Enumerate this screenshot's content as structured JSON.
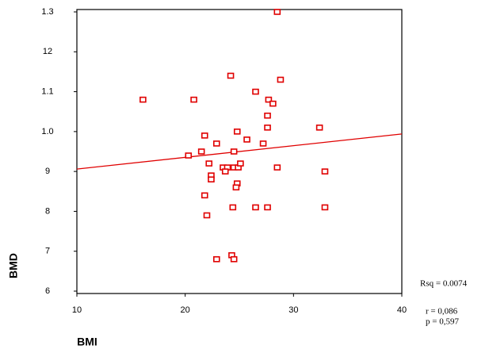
{
  "chart_data": {
    "type": "scatter",
    "x_label": "BMI",
    "y_label": "BMD",
    "color": "#e00000",
    "xlim": [
      10,
      40
    ],
    "xticks": [
      10,
      20,
      30,
      40
    ],
    "ylim": [
      0.6,
      1.3
    ],
    "yticks": [
      1.3,
      {
        "value": 1.2,
        "label": "12"
      },
      1.1,
      {
        "value": 1.0,
        "label": "1.0"
      },
      {
        "value": 0.9,
        "label": "9"
      },
      {
        "value": 0.8,
        "label": "8"
      },
      {
        "value": 0.7,
        "label": "7"
      },
      {
        "value": 0.6,
        "label": "6"
      }
    ],
    "grid": false,
    "x": [
      28.5,
      24.2,
      28.8,
      16.1,
      20.8,
      26.5,
      27.7,
      28.1,
      27.6,
      27.6,
      32.4,
      21.8,
      24.8,
      25.7,
      22.9,
      27.2,
      21.5,
      20.3,
      24.5,
      22.2,
      23.5,
      23.9,
      24.5,
      24.9,
      25.1,
      23.7,
      28.5,
      32.9,
      22.4,
      22.4,
      24.8,
      24.7,
      21.8,
      24.4,
      26.5,
      27.6,
      32.9,
      22.0,
      22.9,
      24.3,
      24.5
    ],
    "values": [
      1.3,
      1.14,
      1.13,
      1.08,
      1.08,
      1.1,
      1.08,
      1.07,
      1.04,
      1.01,
      1.01,
      0.99,
      1.0,
      0.98,
      0.97,
      0.97,
      0.95,
      0.94,
      0.95,
      0.92,
      0.91,
      0.91,
      0.91,
      0.91,
      0.92,
      0.9,
      0.91,
      0.9,
      0.89,
      0.88,
      0.87,
      0.86,
      0.84,
      0.81,
      0.81,
      0.81,
      0.81,
      0.79,
      0.68,
      0.69,
      0.68
    ],
    "fit_line": {
      "x": [
        10,
        40
      ],
      "values": [
        0.906,
        0.994
      ]
    },
    "annotations": [
      "Rsq = 0.0074",
      "r = 0,086",
      "p = 0,597"
    ]
  }
}
